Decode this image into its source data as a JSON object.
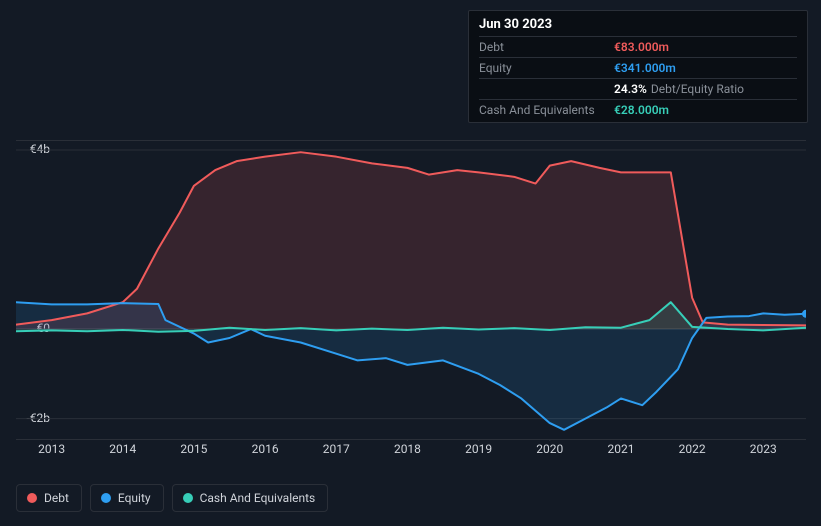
{
  "tooltip": {
    "date": "Jun 30 2023",
    "rows": [
      {
        "label": "Debt",
        "value": "€83.000m",
        "color": "#f05b5b"
      },
      {
        "label": "Equity",
        "value": "€341.000m",
        "color": "#2e9ef1"
      },
      {
        "label": "",
        "value": "24.3%",
        "suffix": "Debt/Equity Ratio",
        "color": "#ffffff"
      },
      {
        "label": "Cash And Equivalents",
        "value": "€28.000m",
        "color": "#37ceb8"
      }
    ]
  },
  "chart": {
    "type": "area-line",
    "background_color": "#131a25",
    "grid_color": "#2a2f38",
    "text_color": "#d0d4da",
    "y": {
      "min": -2500,
      "max": 4200,
      "ticks": [
        {
          "v": 4000,
          "label": "€4b"
        },
        {
          "v": 0,
          "label": "€0"
        },
        {
          "v": -2000,
          "label": "-€2b"
        }
      ],
      "zero_line_color": "#3a3f48"
    },
    "x": {
      "min": 2012.5,
      "max": 2023.6,
      "ticks": [
        2013,
        2014,
        2015,
        2016,
        2017,
        2018,
        2019,
        2020,
        2021,
        2022,
        2023
      ]
    },
    "series": {
      "debt": {
        "label": "Debt",
        "color": "#f05b5b",
        "fill": "rgba(240,91,91,0.16)",
        "line_width": 2,
        "points": [
          [
            2012.5,
            100
          ],
          [
            2013.0,
            200
          ],
          [
            2013.5,
            350
          ],
          [
            2014.0,
            600
          ],
          [
            2014.2,
            900
          ],
          [
            2014.5,
            1800
          ],
          [
            2014.8,
            2600
          ],
          [
            2015.0,
            3200
          ],
          [
            2015.3,
            3550
          ],
          [
            2015.6,
            3750
          ],
          [
            2016.0,
            3850
          ],
          [
            2016.5,
            3950
          ],
          [
            2017.0,
            3850
          ],
          [
            2017.5,
            3700
          ],
          [
            2018.0,
            3600
          ],
          [
            2018.3,
            3450
          ],
          [
            2018.7,
            3550
          ],
          [
            2019.0,
            3500
          ],
          [
            2019.5,
            3400
          ],
          [
            2019.8,
            3250
          ],
          [
            2020.0,
            3650
          ],
          [
            2020.3,
            3750
          ],
          [
            2020.7,
            3600
          ],
          [
            2021.0,
            3500
          ],
          [
            2021.3,
            3500
          ],
          [
            2021.5,
            3500
          ],
          [
            2021.7,
            3500
          ],
          [
            2022.0,
            700
          ],
          [
            2022.15,
            150
          ],
          [
            2022.5,
            100
          ],
          [
            2023.0,
            90
          ],
          [
            2023.6,
            83
          ]
        ]
      },
      "equity": {
        "label": "Equity",
        "color": "#2e9ef1",
        "fill": "rgba(46,158,241,0.14)",
        "line_width": 2,
        "points": [
          [
            2012.5,
            600
          ],
          [
            2013.0,
            550
          ],
          [
            2013.5,
            550
          ],
          [
            2014.0,
            580
          ],
          [
            2014.5,
            560
          ],
          [
            2014.6,
            200
          ],
          [
            2015.0,
            -100
          ],
          [
            2015.2,
            -300
          ],
          [
            2015.5,
            -200
          ],
          [
            2015.8,
            0
          ],
          [
            2016.0,
            -150
          ],
          [
            2016.5,
            -300
          ],
          [
            2017.0,
            -550
          ],
          [
            2017.3,
            -700
          ],
          [
            2017.7,
            -650
          ],
          [
            2018.0,
            -800
          ],
          [
            2018.5,
            -700
          ],
          [
            2019.0,
            -1000
          ],
          [
            2019.3,
            -1250
          ],
          [
            2019.6,
            -1550
          ],
          [
            2020.0,
            -2100
          ],
          [
            2020.2,
            -2250
          ],
          [
            2020.5,
            -2000
          ],
          [
            2020.8,
            -1750
          ],
          [
            2021.0,
            -1550
          ],
          [
            2021.3,
            -1700
          ],
          [
            2021.5,
            -1400
          ],
          [
            2021.8,
            -900
          ],
          [
            2022.0,
            -200
          ],
          [
            2022.2,
            250
          ],
          [
            2022.5,
            280
          ],
          [
            2022.8,
            290
          ],
          [
            2023.0,
            350
          ],
          [
            2023.3,
            320
          ],
          [
            2023.6,
            341
          ]
        ]
      },
      "cash": {
        "label": "Cash And Equivalents",
        "color": "#37ceb8",
        "fill": "rgba(55,206,184,0.15)",
        "line_width": 2,
        "points": [
          [
            2012.5,
            -50
          ],
          [
            2013.0,
            -30
          ],
          [
            2013.5,
            -50
          ],
          [
            2014.0,
            -20
          ],
          [
            2014.5,
            -60
          ],
          [
            2015.0,
            -40
          ],
          [
            2015.5,
            30
          ],
          [
            2016.0,
            -20
          ],
          [
            2016.5,
            20
          ],
          [
            2017.0,
            -30
          ],
          [
            2017.5,
            10
          ],
          [
            2018.0,
            -20
          ],
          [
            2018.5,
            30
          ],
          [
            2019.0,
            -10
          ],
          [
            2019.5,
            20
          ],
          [
            2020.0,
            -20
          ],
          [
            2020.5,
            40
          ],
          [
            2021.0,
            30
          ],
          [
            2021.4,
            200
          ],
          [
            2021.7,
            600
          ],
          [
            2022.0,
            50
          ],
          [
            2022.5,
            0
          ],
          [
            2023.0,
            -30
          ],
          [
            2023.6,
            28
          ]
        ]
      }
    },
    "legend": [
      "debt",
      "equity",
      "cash"
    ],
    "marker_x": 2023.6
  }
}
